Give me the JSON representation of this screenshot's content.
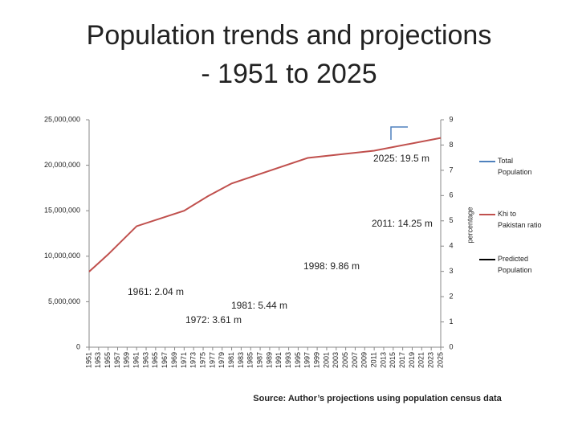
{
  "chart_data": {
    "type": "line",
    "title": "Population trends and projections",
    "subtitle": "- 1951 to 2025",
    "source": "Source: Author’s projections using population census data",
    "y2_label": "percentage",
    "xlim": [
      1951,
      2025
    ],
    "xticks": [
      1951,
      1953,
      1955,
      1957,
      1959,
      1961,
      1963,
      1965,
      1967,
      1969,
      1971,
      1973,
      1975,
      1977,
      1979,
      1981,
      1983,
      1985,
      1987,
      1989,
      1991,
      1993,
      1995,
      1997,
      1999,
      2001,
      2003,
      2005,
      2007,
      2009,
      2011,
      2013,
      2015,
      2017,
      2019,
      2021,
      2023,
      2025
    ],
    "ylim": [
      0,
      25000000
    ],
    "yticks": [
      0,
      {
        "value": 5000000,
        "label": "5,000,000"
      },
      {
        "value": 10000000,
        "label": "10,000,000"
      },
      {
        "value": 15000000,
        "label": "15,000,000"
      },
      {
        "value": 20000000,
        "label": "20,000,000"
      },
      {
        "value": 25000000,
        "label": "25,000,000"
      }
    ],
    "y2lim": [
      0,
      9
    ],
    "y2ticks": [
      0,
      1,
      2,
      3,
      4,
      5,
      6,
      7,
      8,
      9
    ],
    "series": [
      {
        "name": "Total Population",
        "color": "#4f81bd",
        "x": [],
        "values": []
      },
      {
        "name": "Khi to Pakistan ratio",
        "color": "#c0504d",
        "x": [
          1951,
          1955,
          1961,
          1971,
          1976,
          1981,
          1997,
          2011,
          2025
        ],
        "values": [
          8300000,
          10200000,
          13300000,
          15000000,
          16600000,
          18000000,
          20800000,
          21600000,
          23000000
        ]
      },
      {
        "name": "Predicted Population",
        "color": "#000000",
        "x": [],
        "values": []
      }
    ],
    "annotations": [
      "2025: 19.5 m",
      "2011: 14.25 m",
      "1998: 9.86 m",
      "1961: 2.04 m",
      "1981: 5.44 m",
      "1972: 3.61 m"
    ]
  }
}
